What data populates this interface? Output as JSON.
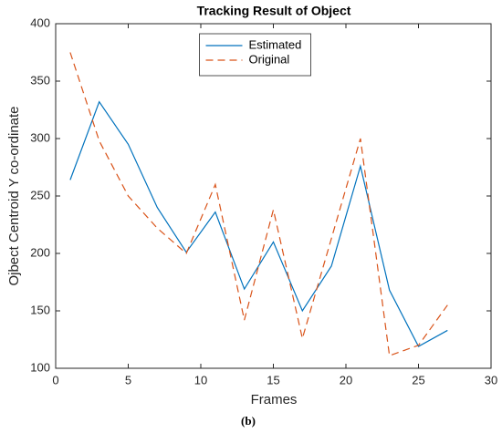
{
  "chart_data": {
    "type": "line",
    "title": "Tracking Result of Object",
    "xlabel": "Frames",
    "ylabel": "Ojbect Centroid Y co-ordinate",
    "caption": "(b)",
    "x": [
      1,
      3,
      5,
      7,
      9,
      11,
      13,
      15,
      17,
      19,
      21,
      23,
      25,
      27
    ],
    "series": [
      {
        "name": "Estimated",
        "color": "#0072bd",
        "linestyle": "solid",
        "values": [
          264,
          332,
          295,
          240,
          201,
          236,
          169,
          210,
          150,
          189,
          276,
          168,
          119,
          133
        ]
      },
      {
        "name": "Original",
        "color": "#d95319",
        "linestyle": "dashed",
        "values": [
          375,
          298,
          250,
          222,
          200,
          260,
          142,
          238,
          126,
          213,
          300,
          111,
          120,
          155
        ]
      }
    ],
    "xlim": [
      0,
      30
    ],
    "xticks": [
      0,
      5,
      10,
      15,
      20,
      25,
      30
    ],
    "ylim": [
      100,
      400
    ],
    "yticks": [
      100,
      150,
      200,
      250,
      300,
      350,
      400
    ],
    "grid": false,
    "legend_location": "north"
  }
}
